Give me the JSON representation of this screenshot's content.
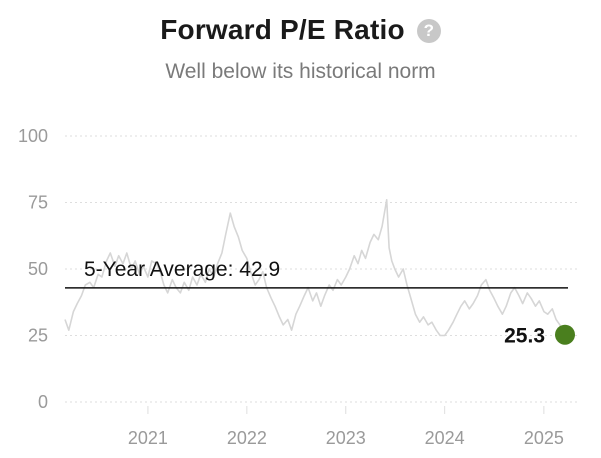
{
  "header": {
    "title": "Forward P/E Ratio",
    "subtitle": "Well below its historical norm",
    "help_icon": "question-circle-icon",
    "help_symbol": "?"
  },
  "colors": {
    "line": "#d6d6d6",
    "grid": "#dedede",
    "average": "#111111",
    "marker": "#4a7f1e",
    "tick_text": "#9a9a9a"
  },
  "chart_data": {
    "type": "line",
    "title": "Forward P/E Ratio",
    "subtitle": "Well below its historical norm",
    "xlabel": "",
    "ylabel": "",
    "ylim": [
      0,
      100
    ],
    "xlim": [
      "2020-03-01",
      "2025-03-20"
    ],
    "yticks": [
      0,
      25,
      50,
      75,
      100
    ],
    "xticks": [
      {
        "label": "2021",
        "x": "2021-01-01"
      },
      {
        "label": "2022",
        "x": "2022-01-01"
      },
      {
        "label": "2023",
        "x": "2023-01-01"
      },
      {
        "label": "2024",
        "x": "2024-01-01"
      },
      {
        "label": "2025",
        "x": "2025-01-01"
      }
    ],
    "grid": true,
    "grid_style": "dotted-horizontal",
    "legend": "none",
    "series": [
      {
        "points": [
          [
            "2020-03-01",
            31
          ],
          [
            "2020-03-15",
            27
          ],
          [
            "2020-04-01",
            34
          ],
          [
            "2020-04-15",
            37
          ],
          [
            "2020-05-01",
            40
          ],
          [
            "2020-05-15",
            44
          ],
          [
            "2020-06-01",
            45
          ],
          [
            "2020-06-15",
            43
          ],
          [
            "2020-07-01",
            48
          ],
          [
            "2020-07-15",
            47
          ],
          [
            "2020-08-01",
            53
          ],
          [
            "2020-08-15",
            56
          ],
          [
            "2020-09-01",
            51
          ],
          [
            "2020-09-15",
            55
          ],
          [
            "2020-10-01",
            52
          ],
          [
            "2020-10-15",
            56
          ],
          [
            "2020-11-01",
            50
          ],
          [
            "2020-11-15",
            53
          ],
          [
            "2020-12-01",
            48
          ],
          [
            "2020-12-15",
            51
          ],
          [
            "2021-01-01",
            47
          ],
          [
            "2021-01-15",
            53
          ],
          [
            "2021-02-01",
            52
          ],
          [
            "2021-02-15",
            49
          ],
          [
            "2021-03-01",
            44
          ],
          [
            "2021-03-15",
            41
          ],
          [
            "2021-04-01",
            46
          ],
          [
            "2021-04-15",
            43
          ],
          [
            "2021-05-01",
            41
          ],
          [
            "2021-05-15",
            45
          ],
          [
            "2021-06-01",
            42
          ],
          [
            "2021-06-15",
            47
          ],
          [
            "2021-07-01",
            44
          ],
          [
            "2021-07-15",
            48
          ],
          [
            "2021-08-01",
            45
          ],
          [
            "2021-08-15",
            50
          ],
          [
            "2021-09-01",
            47
          ],
          [
            "2021-09-15",
            52
          ],
          [
            "2021-10-01",
            56
          ],
          [
            "2021-10-15",
            63
          ],
          [
            "2021-11-01",
            71
          ],
          [
            "2021-11-15",
            66
          ],
          [
            "2021-12-01",
            62
          ],
          [
            "2021-12-15",
            57
          ],
          [
            "2022-01-01",
            54
          ],
          [
            "2022-01-15",
            49
          ],
          [
            "2022-02-01",
            44
          ],
          [
            "2022-02-15",
            46
          ],
          [
            "2022-03-01",
            49
          ],
          [
            "2022-03-15",
            43
          ],
          [
            "2022-04-01",
            39
          ],
          [
            "2022-04-15",
            36
          ],
          [
            "2022-05-01",
            32
          ],
          [
            "2022-05-15",
            29
          ],
          [
            "2022-06-01",
            31
          ],
          [
            "2022-06-15",
            27
          ],
          [
            "2022-07-01",
            33
          ],
          [
            "2022-07-15",
            36
          ],
          [
            "2022-08-01",
            40
          ],
          [
            "2022-08-15",
            43
          ],
          [
            "2022-09-01",
            38
          ],
          [
            "2022-09-15",
            41
          ],
          [
            "2022-10-01",
            36
          ],
          [
            "2022-10-15",
            40
          ],
          [
            "2022-11-01",
            44
          ],
          [
            "2022-11-15",
            42
          ],
          [
            "2022-12-01",
            46
          ],
          [
            "2022-12-15",
            44
          ],
          [
            "2023-01-01",
            47
          ],
          [
            "2023-01-15",
            50
          ],
          [
            "2023-02-01",
            55
          ],
          [
            "2023-02-15",
            52
          ],
          [
            "2023-03-01",
            57
          ],
          [
            "2023-03-15",
            54
          ],
          [
            "2023-04-01",
            60
          ],
          [
            "2023-04-15",
            63
          ],
          [
            "2023-05-01",
            61
          ],
          [
            "2023-05-15",
            66
          ],
          [
            "2023-06-01",
            76
          ],
          [
            "2023-06-10",
            58
          ],
          [
            "2023-06-20",
            53
          ],
          [
            "2023-07-01",
            50
          ],
          [
            "2023-07-15",
            47
          ],
          [
            "2023-08-01",
            50
          ],
          [
            "2023-08-15",
            44
          ],
          [
            "2023-09-01",
            38
          ],
          [
            "2023-09-15",
            33
          ],
          [
            "2023-10-01",
            30
          ],
          [
            "2023-10-15",
            32
          ],
          [
            "2023-11-01",
            29
          ],
          [
            "2023-11-15",
            30
          ],
          [
            "2023-12-01",
            27
          ],
          [
            "2023-12-15",
            25
          ],
          [
            "2024-01-01",
            25
          ],
          [
            "2024-01-15",
            27
          ],
          [
            "2024-02-01",
            30
          ],
          [
            "2024-02-15",
            33
          ],
          [
            "2024-03-01",
            36
          ],
          [
            "2024-03-15",
            38
          ],
          [
            "2024-04-01",
            35
          ],
          [
            "2024-04-15",
            37
          ],
          [
            "2024-05-01",
            40
          ],
          [
            "2024-05-15",
            44
          ],
          [
            "2024-06-01",
            46
          ],
          [
            "2024-06-15",
            42
          ],
          [
            "2024-07-01",
            39
          ],
          [
            "2024-07-15",
            36
          ],
          [
            "2024-08-01",
            33
          ],
          [
            "2024-08-15",
            36
          ],
          [
            "2024-09-01",
            41
          ],
          [
            "2024-09-15",
            43
          ],
          [
            "2024-10-01",
            40
          ],
          [
            "2024-10-15",
            37
          ],
          [
            "2024-11-01",
            41
          ],
          [
            "2024-11-15",
            39
          ],
          [
            "2024-12-01",
            36
          ],
          [
            "2024-12-15",
            38
          ],
          [
            "2025-01-01",
            34
          ],
          [
            "2025-01-15",
            33
          ],
          [
            "2025-02-01",
            35
          ],
          [
            "2025-02-15",
            31
          ],
          [
            "2025-03-01",
            29
          ],
          [
            "2025-03-20",
            25.3
          ]
        ]
      }
    ],
    "average": {
      "value": 42.9,
      "label": "5-Year Average: 42.9"
    },
    "last": {
      "x": "2025-03-20",
      "value": 25.3,
      "label": "25.3"
    }
  }
}
